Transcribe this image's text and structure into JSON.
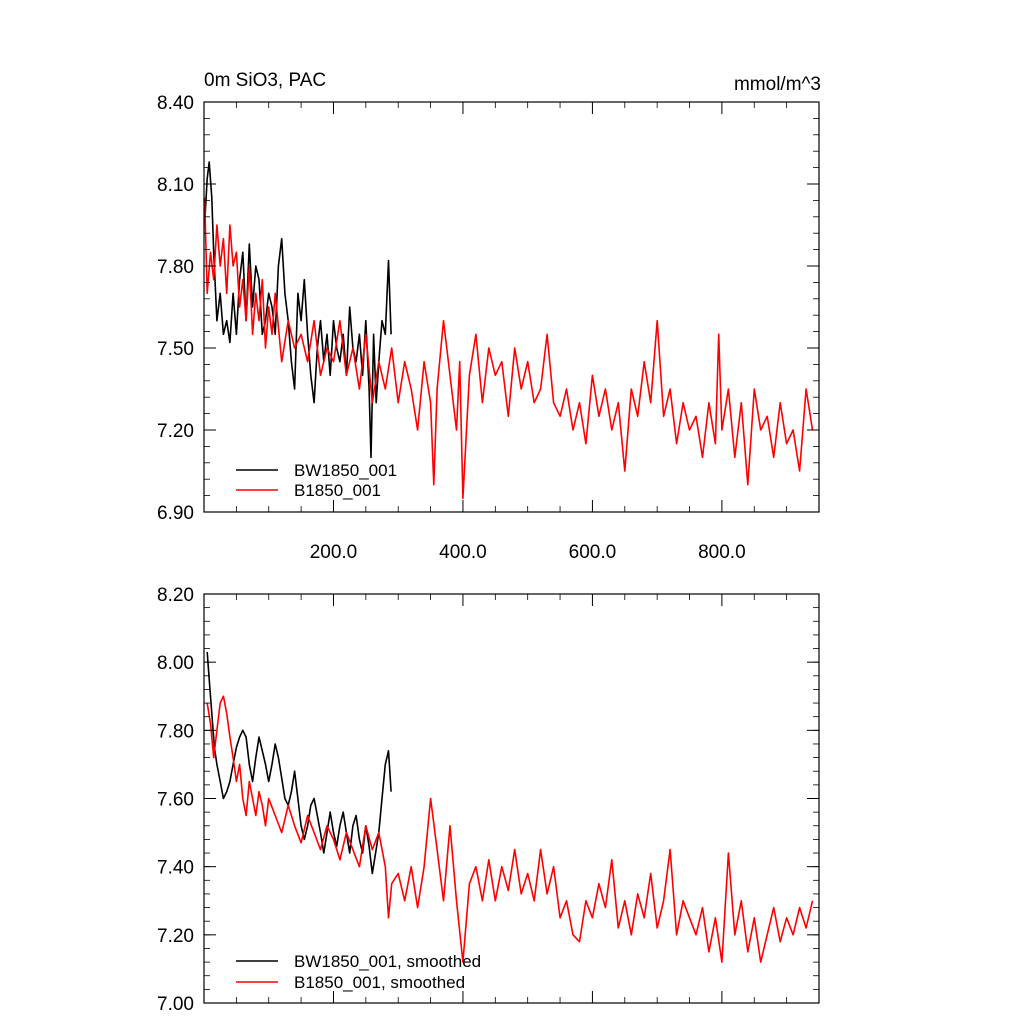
{
  "chart_data": [
    {
      "type": "line",
      "title_left": "0m SiO3, PAC",
      "title_right": "mmol/m^3",
      "xlim": [
        0,
        950
      ],
      "ylim": [
        6.9,
        8.4
      ],
      "xticks": [
        200,
        400,
        600,
        800
      ],
      "xtick_labels": [
        "200.0",
        "400.0",
        "600.0",
        "800.0"
      ],
      "yticks": [
        6.9,
        7.2,
        7.5,
        7.8,
        8.1,
        8.4
      ],
      "ytick_labels": [
        "6.90",
        "7.20",
        "7.50",
        "7.80",
        "8.10",
        "8.40"
      ],
      "legend_position": "bottom-left",
      "series": [
        {
          "name": "BW1850_001",
          "color": "#000000",
          "x": [
            1,
            5,
            8,
            12,
            15,
            20,
            25,
            30,
            35,
            40,
            45,
            50,
            55,
            60,
            65,
            70,
            75,
            80,
            85,
            90,
            95,
            100,
            105,
            110,
            115,
            120,
            125,
            130,
            135,
            140,
            145,
            150,
            155,
            160,
            165,
            170,
            175,
            180,
            185,
            190,
            195,
            200,
            205,
            210,
            215,
            220,
            225,
            230,
            235,
            240,
            245,
            250,
            255,
            258,
            262,
            266,
            270,
            275,
            280,
            285,
            289
          ],
          "y": [
            7.95,
            8.12,
            8.18,
            8.05,
            7.85,
            7.6,
            7.7,
            7.55,
            7.6,
            7.52,
            7.7,
            7.55,
            7.75,
            7.85,
            7.6,
            7.88,
            7.65,
            7.8,
            7.75,
            7.55,
            7.6,
            7.7,
            7.65,
            7.55,
            7.8,
            7.9,
            7.7,
            7.6,
            7.45,
            7.35,
            7.7,
            7.6,
            7.75,
            7.55,
            7.4,
            7.3,
            7.5,
            7.6,
            7.45,
            7.55,
            7.4,
            7.6,
            7.5,
            7.45,
            7.55,
            7.4,
            7.65,
            7.5,
            7.45,
            7.55,
            7.4,
            7.6,
            7.35,
            7.1,
            7.55,
            7.3,
            7.45,
            7.6,
            7.55,
            7.82,
            7.55
          ]
        },
        {
          "name": "B1850_001",
          "color": "#ff0000",
          "x": [
            1,
            5,
            10,
            15,
            20,
            25,
            30,
            35,
            40,
            45,
            50,
            55,
            60,
            65,
            70,
            75,
            80,
            85,
            90,
            95,
            100,
            105,
            110,
            120,
            130,
            140,
            150,
            160,
            170,
            180,
            190,
            200,
            210,
            220,
            230,
            240,
            250,
            260,
            270,
            280,
            290,
            300,
            310,
            320,
            330,
            340,
            350,
            355,
            360,
            370,
            380,
            390,
            395,
            400,
            410,
            420,
            430,
            440,
            450,
            460,
            470,
            480,
            490,
            500,
            510,
            520,
            530,
            540,
            550,
            560,
            570,
            580,
            590,
            600,
            610,
            620,
            630,
            640,
            650,
            660,
            670,
            680,
            690,
            700,
            710,
            720,
            730,
            740,
            750,
            760,
            770,
            780,
            790,
            795,
            800,
            810,
            820,
            830,
            840,
            850,
            860,
            870,
            880,
            890,
            900,
            910,
            920,
            930,
            940
          ],
          "y": [
            8.05,
            7.7,
            7.85,
            7.75,
            7.95,
            7.8,
            7.9,
            7.7,
            7.95,
            7.8,
            7.85,
            7.65,
            7.75,
            7.6,
            7.8,
            7.55,
            7.7,
            7.6,
            7.75,
            7.5,
            7.65,
            7.55,
            7.7,
            7.45,
            7.6,
            7.5,
            7.55,
            7.45,
            7.6,
            7.4,
            7.5,
            7.45,
            7.6,
            7.4,
            7.5,
            7.35,
            7.55,
            7.3,
            7.45,
            7.35,
            7.5,
            7.3,
            7.45,
            7.35,
            7.2,
            7.45,
            7.3,
            7.0,
            7.35,
            7.6,
            7.4,
            7.2,
            7.45,
            6.95,
            7.4,
            7.55,
            7.3,
            7.5,
            7.4,
            7.45,
            7.25,
            7.5,
            7.35,
            7.45,
            7.3,
            7.35,
            7.55,
            7.3,
            7.25,
            7.35,
            7.2,
            7.3,
            7.15,
            7.4,
            7.25,
            7.35,
            7.2,
            7.3,
            7.05,
            7.35,
            7.25,
            7.45,
            7.3,
            7.6,
            7.25,
            7.35,
            7.15,
            7.3,
            7.2,
            7.25,
            7.1,
            7.3,
            7.15,
            7.55,
            7.2,
            7.35,
            7.1,
            7.3,
            7.0,
            7.35,
            7.2,
            7.25,
            7.1,
            7.3,
            7.15,
            7.2,
            7.05,
            7.35,
            7.2
          ]
        }
      ]
    },
    {
      "type": "line",
      "xlim": [
        0,
        950
      ],
      "ylim": [
        7.0,
        8.2
      ],
      "xticks": [
        200,
        400,
        600,
        800
      ],
      "yticks": [
        7.0,
        7.2,
        7.4,
        7.6,
        7.8,
        8.0,
        8.2
      ],
      "ytick_labels": [
        "7.00",
        "7.20",
        "7.40",
        "7.60",
        "7.80",
        "8.00",
        "8.20"
      ],
      "legend_position": "bottom-left",
      "series": [
        {
          "name": "BW1850_001, smoothed",
          "color": "#000000",
          "x": [
            5,
            8,
            12,
            16,
            20,
            25,
            30,
            35,
            40,
            45,
            50,
            55,
            60,
            65,
            70,
            75,
            80,
            85,
            90,
            95,
            100,
            105,
            110,
            115,
            120,
            125,
            130,
            135,
            140,
            145,
            150,
            155,
            160,
            165,
            170,
            175,
            180,
            185,
            190,
            195,
            200,
            205,
            210,
            215,
            220,
            225,
            230,
            235,
            240,
            245,
            250,
            255,
            260,
            265,
            270,
            275,
            280,
            285,
            289
          ],
          "y": [
            8.03,
            7.95,
            7.85,
            7.75,
            7.7,
            7.65,
            7.6,
            7.62,
            7.65,
            7.7,
            7.75,
            7.78,
            7.8,
            7.78,
            7.7,
            7.65,
            7.72,
            7.78,
            7.74,
            7.7,
            7.65,
            7.7,
            7.76,
            7.72,
            7.66,
            7.6,
            7.58,
            7.62,
            7.68,
            7.6,
            7.52,
            7.48,
            7.52,
            7.58,
            7.6,
            7.55,
            7.5,
            7.44,
            7.5,
            7.56,
            7.5,
            7.46,
            7.52,
            7.56,
            7.5,
            7.44,
            7.52,
            7.55,
            7.48,
            7.44,
            7.52,
            7.46,
            7.38,
            7.44,
            7.5,
            7.6,
            7.7,
            7.74,
            7.62
          ]
        },
        {
          "name": "B1850_001, smoothed",
          "color": "#ff0000",
          "x": [
            5,
            10,
            15,
            20,
            25,
            30,
            35,
            40,
            45,
            50,
            55,
            60,
            65,
            70,
            75,
            80,
            85,
            90,
            95,
            100,
            110,
            120,
            130,
            140,
            150,
            160,
            170,
            180,
            190,
            200,
            210,
            220,
            230,
            240,
            250,
            260,
            270,
            280,
            285,
            290,
            300,
            310,
            320,
            330,
            340,
            350,
            360,
            370,
            380,
            390,
            400,
            410,
            420,
            430,
            440,
            450,
            460,
            470,
            480,
            490,
            500,
            510,
            520,
            530,
            540,
            550,
            560,
            570,
            580,
            590,
            600,
            610,
            620,
            630,
            640,
            650,
            660,
            670,
            680,
            690,
            700,
            710,
            720,
            730,
            740,
            750,
            760,
            770,
            780,
            790,
            800,
            810,
            820,
            830,
            840,
            850,
            860,
            870,
            880,
            890,
            900,
            910,
            920,
            930,
            940
          ],
          "y": [
            7.88,
            7.82,
            7.72,
            7.8,
            7.88,
            7.9,
            7.85,
            7.78,
            7.72,
            7.65,
            7.7,
            7.6,
            7.55,
            7.65,
            7.6,
            7.55,
            7.62,
            7.58,
            7.52,
            7.6,
            7.55,
            7.5,
            7.58,
            7.52,
            7.47,
            7.55,
            7.5,
            7.45,
            7.52,
            7.48,
            7.42,
            7.5,
            7.45,
            7.4,
            7.52,
            7.45,
            7.5,
            7.4,
            7.25,
            7.35,
            7.38,
            7.3,
            7.4,
            7.28,
            7.4,
            7.6,
            7.45,
            7.3,
            7.52,
            7.3,
            7.12,
            7.35,
            7.4,
            7.3,
            7.42,
            7.3,
            7.4,
            7.33,
            7.45,
            7.32,
            7.38,
            7.3,
            7.45,
            7.32,
            7.4,
            7.25,
            7.3,
            7.2,
            7.18,
            7.3,
            7.25,
            7.35,
            7.28,
            7.42,
            7.22,
            7.3,
            7.2,
            7.32,
            7.25,
            7.38,
            7.22,
            7.3,
            7.45,
            7.2,
            7.3,
            7.25,
            7.2,
            7.28,
            7.15,
            7.25,
            7.12,
            7.44,
            7.2,
            7.3,
            7.15,
            7.25,
            7.12,
            7.2,
            7.28,
            7.18,
            7.25,
            7.2,
            7.28,
            7.22,
            7.3
          ]
        }
      ]
    }
  ]
}
